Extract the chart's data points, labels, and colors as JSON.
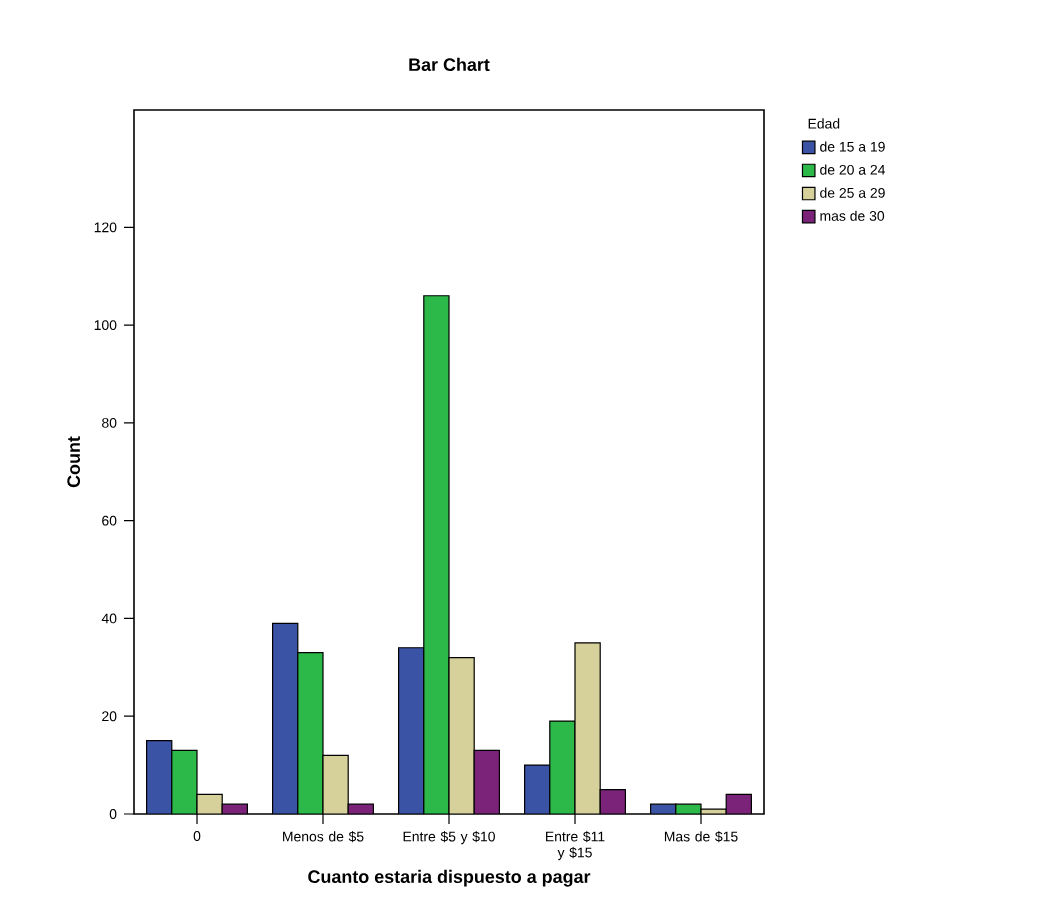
{
  "chart_data": {
    "type": "bar",
    "title": "Bar Chart",
    "xlabel": "Cuanto estaria dispuesto a pagar",
    "ylabel": "Count",
    "legend_title": "Edad",
    "categories": [
      "0",
      "Menos de $5",
      "Entre $5 y $10",
      "Entre $11 y $15",
      "Mas de $15"
    ],
    "series": [
      {
        "name": "de 15 a 19",
        "color": "#3a53a4",
        "values": [
          15,
          39,
          34,
          10,
          2
        ]
      },
      {
        "name": "de 20 a 24",
        "color": "#2db84a",
        "values": [
          13,
          33,
          106,
          19,
          2
        ]
      },
      {
        "name": "de 25 a 29",
        "color": "#d6d09a",
        "values": [
          4,
          12,
          32,
          35,
          1
        ]
      },
      {
        "name": "mas de 30",
        "color": "#7a2378",
        "values": [
          2,
          2,
          13,
          5,
          4
        ]
      }
    ],
    "ylim": [
      0,
      144
    ],
    "yticks": [
      0,
      20,
      40,
      60,
      80,
      100,
      120
    ],
    "legend": "top right"
  }
}
